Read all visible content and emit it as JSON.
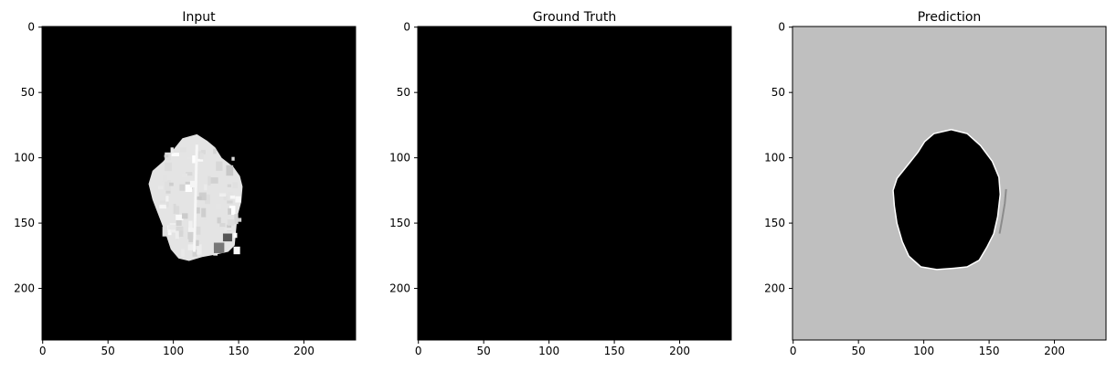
{
  "chart_data": [
    {
      "type": "heatmap",
      "title": "Input",
      "xlabel": "",
      "ylabel": "",
      "xticks": [
        0,
        50,
        100,
        150,
        200
      ],
      "yticks": [
        0,
        50,
        100,
        150,
        200
      ],
      "xlim": [
        -0.5,
        239.5
      ],
      "ylim": [
        239.5,
        -0.5
      ],
      "background": "#000000",
      "content": "brain-slice"
    },
    {
      "type": "heatmap",
      "title": "Ground Truth",
      "xlabel": "",
      "ylabel": "",
      "xticks": [
        0,
        50,
        100,
        150,
        200
      ],
      "yticks": [
        0,
        50,
        100,
        150,
        200
      ],
      "xlim": [
        -0.5,
        239.5
      ],
      "ylim": [
        239.5,
        -0.5
      ],
      "background": "#000000",
      "content": "empty"
    },
    {
      "type": "heatmap",
      "title": "Prediction",
      "xlabel": "",
      "ylabel": "",
      "xticks": [
        0,
        50,
        100,
        150,
        200
      ],
      "yticks": [
        0,
        50,
        100,
        150,
        200
      ],
      "xlim": [
        -0.5,
        239.5
      ],
      "ylim": [
        239.5,
        -0.5
      ],
      "background": "#bfbfbf",
      "content": "inverse-mask"
    }
  ],
  "colors": {
    "brain_light": "#e4e4e4",
    "brain_white": "#f6f6f6",
    "prediction_background": "#bfbfbf",
    "mask": "#000000",
    "edge_artifact": "#8c8c8c"
  }
}
